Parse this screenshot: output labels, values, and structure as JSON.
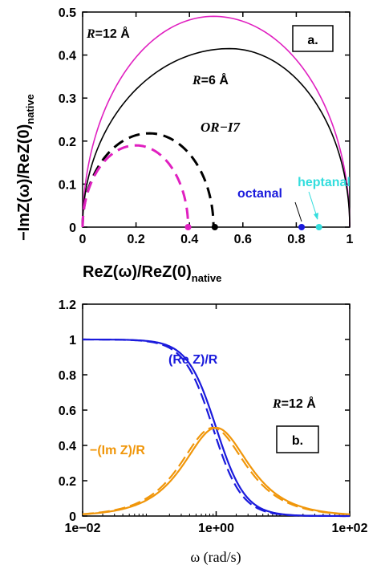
{
  "chart_data": [
    {
      "panel": "a.",
      "type": "line",
      "xlabel": "ReZ(ω)/ReZ(0)",
      "xlabel_sub": "native",
      "ylabel": "−ImZ(ω)/ReZ(0)",
      "ylabel_sub": "native",
      "xlim": [
        0,
        1
      ],
      "ylim": [
        0,
        0.5
      ],
      "xticks": [
        0,
        0.2,
        0.4,
        0.6,
        0.8,
        1
      ],
      "xtick_labels": [
        "0",
        "0.2",
        "0.4",
        "0.6",
        "0.8",
        "1"
      ],
      "yticks": [
        0,
        0.1,
        0.2,
        0.3,
        0.4,
        0.5
      ],
      "ytick_labels": [
        "0",
        "0.1",
        "0.2",
        "0.3",
        "0.4",
        "0.5"
      ],
      "series": [
        {
          "name": "R=12 Å",
          "color": "#e020c0",
          "style": "solid",
          "x_start": 0,
          "x_end": 1,
          "x_peak": 0.49,
          "y_peak": 0.49
        },
        {
          "name": "R=6 Å",
          "color": "#000000",
          "style": "solid",
          "x_start": 0,
          "x_end": 1,
          "x_peak": 0.55,
          "y_peak": 0.415
        },
        {
          "name": "OR-I7",
          "color": "#000000",
          "style": "dashed",
          "x_start": 0,
          "x_end": 0.49,
          "x_peak": 0.25,
          "y_peak": 0.218
        },
        {
          "name": "",
          "color": "#e020c0",
          "style": "dashed",
          "x_start": 0,
          "x_end": 0.395,
          "x_peak": 0.2,
          "y_peak": 0.19
        }
      ],
      "points": [
        {
          "label": "",
          "x": 0.395,
          "y": 0,
          "color": "#e020c0"
        },
        {
          "label": "",
          "x": 0.495,
          "y": 0,
          "color": "#000000"
        },
        {
          "label": "octanal",
          "x": 0.82,
          "y": 0,
          "color": "#1a1adc"
        },
        {
          "label": "heptanal",
          "x": 0.885,
          "y": 0,
          "color": "#33dddd"
        }
      ],
      "annotations": {
        "r12": {
          "italic": "R",
          "rest": "=12 Å",
          "color": "#e020c0"
        },
        "r6": {
          "italic": "R",
          "rest": "=6 Å",
          "color": "#000000"
        },
        "or": {
          "text": "OR−I7",
          "color": "#000000"
        },
        "heptanal": {
          "text": "heptanal",
          "color": "#33dddd"
        },
        "octanal": {
          "text": "octanal",
          "color": "#1a1adc"
        }
      }
    },
    {
      "panel": "b.",
      "type": "line",
      "xlabel": "ω (rad/s)",
      "ylabel": "",
      "xscale": "log",
      "xlim": [
        0.01,
        100
      ],
      "ylim": [
        0,
        1.2
      ],
      "xticks": [
        0.01,
        1,
        100
      ],
      "xtick_labels": [
        "1e−02",
        "1e+00",
        "1e+02"
      ],
      "yticks": [
        0,
        0.2,
        0.4,
        0.6,
        0.8,
        1,
        1.2
      ],
      "ytick_labels": [
        "0",
        "0.2",
        "0.4",
        "0.6",
        "0.8",
        "1",
        "1.2"
      ],
      "tau_solid": 1.0,
      "tau_dashed": 1.12,
      "series": [
        {
          "name": "(Re Z)/R",
          "color": "#1a1adc",
          "style": "solid"
        },
        {
          "name": "",
          "color": "#1a1adc",
          "style": "dashed"
        },
        {
          "name": "−(Im Z)/R",
          "color": "#f0960a",
          "style": "solid"
        },
        {
          "name": "",
          "color": "#f0960a",
          "style": "dashed"
        }
      ],
      "annotations": {
        "re": {
          "text": "(Re Z)/R",
          "color": "#1a1adc"
        },
        "im": {
          "text": "−(Im Z)/R",
          "color": "#f0960a"
        },
        "r12": {
          "italic": "R",
          "rest": "=12 Å",
          "color": "#000000"
        }
      }
    }
  ]
}
